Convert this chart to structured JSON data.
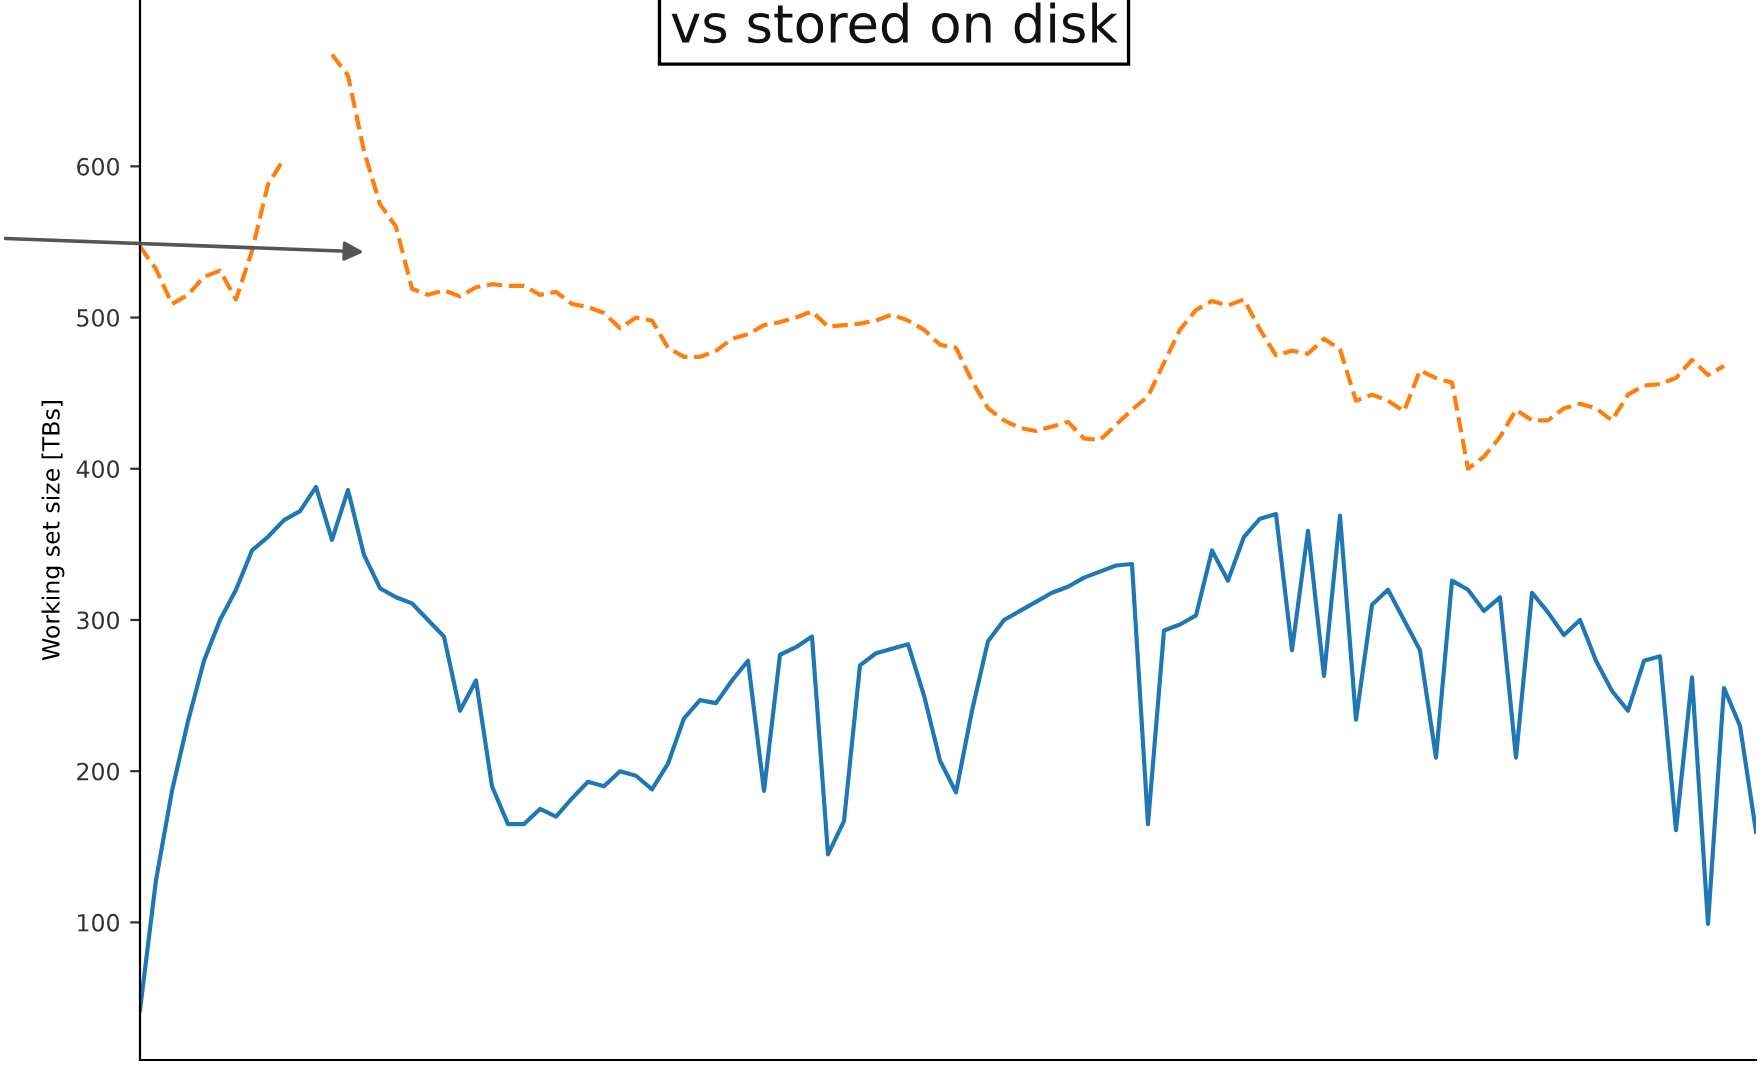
{
  "chart_data": {
    "type": "line",
    "ylabel": "Working set size [TBs]",
    "annotations": [
      "vs stored on disk"
    ],
    "categories": [
      null,
      null,
      null,
      null,
      null,
      null,
      null,
      null,
      null,
      null,
      null,
      null,
      null,
      null,
      null,
      null,
      null,
      null,
      null,
      null,
      null,
      null,
      null,
      null,
      null,
      null,
      null,
      null,
      null,
      null,
      null,
      null,
      null,
      null,
      null,
      null,
      null,
      null,
      null,
      null,
      null,
      null,
      null,
      null,
      null,
      null,
      null,
      null,
      null,
      null,
      null,
      null,
      null,
      null,
      null,
      null,
      null,
      null,
      null,
      null,
      null,
      null,
      null,
      null,
      null,
      null,
      null,
      null,
      null,
      null,
      null,
      null,
      null,
      null,
      null,
      null,
      null,
      null,
      null,
      null,
      null,
      null,
      null,
      null,
      null,
      null,
      null,
      null,
      null,
      null,
      null,
      null,
      null,
      null,
      null,
      null,
      null,
      null,
      null,
      null,
      null,
      null
    ],
    "ylim": [
      9,
      710
    ],
    "yticks": [
      100,
      200,
      300,
      400,
      500,
      600
    ],
    "grid": false,
    "legend": false,
    "series": [
      {
        "color": "#1f77b4",
        "line_style": "solid",
        "values": [
          42,
          128,
          187,
          233,
          273,
          300,
          320,
          346,
          355,
          366,
          372,
          388,
          353,
          386,
          343,
          321,
          315,
          311,
          300,
          289,
          240,
          260,
          190,
          165,
          165,
          175,
          170,
          182,
          193,
          190,
          200,
          197,
          188,
          205,
          235,
          247,
          245,
          260,
          273,
          187,
          277,
          282,
          289,
          145,
          167,
          270,
          278,
          281,
          284,
          250,
          207,
          186,
          240,
          286,
          300,
          306,
          312,
          318,
          322,
          328,
          332,
          336,
          337,
          165,
          293,
          297,
          303,
          346,
          326,
          355,
          367,
          370,
          280,
          359,
          263,
          369,
          234,
          310,
          320,
          300,
          280,
          209,
          326,
          320,
          306,
          315,
          209,
          318,
          305,
          290,
          300,
          273,
          253,
          240,
          273,
          276,
          161,
          262,
          99,
          255,
          230,
          160
        ]
      },
      {
        "color": "#ff7f0e",
        "line_style": "dashed",
        "values": [
          547,
          532,
          509,
          515,
          527,
          531,
          512,
          544,
          588,
          605,
          null,
          null,
          674,
          660,
          610,
          575,
          560,
          519,
          515,
          518,
          514,
          520,
          522,
          521,
          521,
          515,
          517,
          509,
          507,
          503,
          493,
          500,
          498,
          480,
          474,
          474,
          478,
          486,
          489,
          495,
          497,
          500,
          504,
          494,
          495,
          496,
          498,
          502,
          498,
          492,
          482,
          480,
          458,
          440,
          432,
          427,
          425,
          428,
          431,
          420,
          419,
          429,
          439,
          448,
          470,
          492,
          505,
          511,
          508,
          512,
          492,
          475,
          478,
          476,
          486,
          479,
          445,
          449,
          445,
          438,
          465,
          460,
          457,
          400,
          408,
          421,
          439,
          432,
          432,
          440,
          443,
          440,
          432,
          449,
          455,
          456,
          460,
          472,
          462,
          468,
          null,
          null
        ]
      }
    ]
  }
}
